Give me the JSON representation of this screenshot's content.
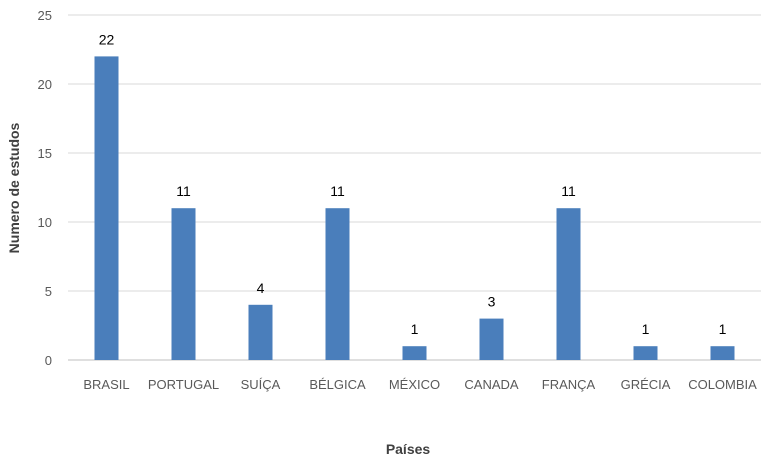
{
  "chart_data": {
    "type": "bar",
    "title": "",
    "xlabel": "Países",
    "ylabel": "Numero de estudos",
    "categories": [
      "BRASIL",
      "PORTUGAL",
      "SUÍÇA",
      "BÉLGICA",
      "MÉXICO",
      "CANADA",
      "FRANÇA",
      "GRÉCIA",
      "COLOMBIA"
    ],
    "values": [
      22,
      11,
      4,
      11,
      1,
      3,
      11,
      1,
      1
    ],
    "ylim": [
      0,
      25
    ],
    "yticks": [
      0,
      5,
      10,
      15,
      20,
      25
    ],
    "grid": true,
    "legend": "none",
    "bar_color": "#4a7ebb"
  }
}
